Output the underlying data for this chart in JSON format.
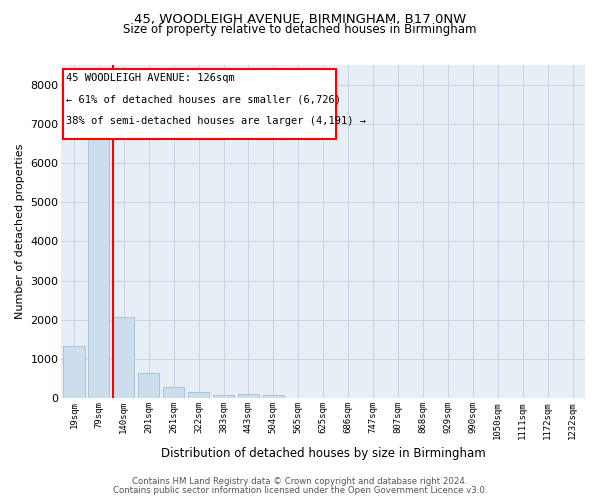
{
  "title_line1": "45, WOODLEIGH AVENUE, BIRMINGHAM, B17 0NW",
  "title_line2": "Size of property relative to detached houses in Birmingham",
  "xlabel": "Distribution of detached houses by size in Birmingham",
  "ylabel": "Number of detached properties",
  "bar_labels": [
    "19sqm",
    "79sqm",
    "140sqm",
    "201sqm",
    "261sqm",
    "322sqm",
    "383sqm",
    "443sqm",
    "504sqm",
    "565sqm",
    "625sqm",
    "686sqm",
    "747sqm",
    "807sqm",
    "868sqm",
    "929sqm",
    "990sqm",
    "1050sqm",
    "1111sqm",
    "1172sqm",
    "1232sqm"
  ],
  "bar_values": [
    1330,
    6610,
    2080,
    650,
    290,
    150,
    80,
    100,
    80,
    0,
    0,
    0,
    0,
    0,
    0,
    0,
    0,
    0,
    0,
    0,
    0
  ],
  "bar_color": "#ccdded",
  "bar_edge_color": "#aac4d8",
  "annotation_box_text_line1": "45 WOODLEIGH AVENUE: 126sqm",
  "annotation_box_text_line2": "← 61% of detached houses are smaller (6,726)",
  "annotation_box_text_line3": "38% of semi-detached houses are larger (4,191) →",
  "red_line_x": 1.55,
  "ylim": [
    0,
    8500
  ],
  "yticks": [
    0,
    1000,
    2000,
    3000,
    4000,
    5000,
    6000,
    7000,
    8000
  ],
  "grid_color": "#c8d4e4",
  "bg_color": "#e8eef6",
  "footer_line1": "Contains HM Land Registry data © Crown copyright and database right 2024.",
  "footer_line2": "Contains public sector information licensed under the Open Government Licence v3.0."
}
